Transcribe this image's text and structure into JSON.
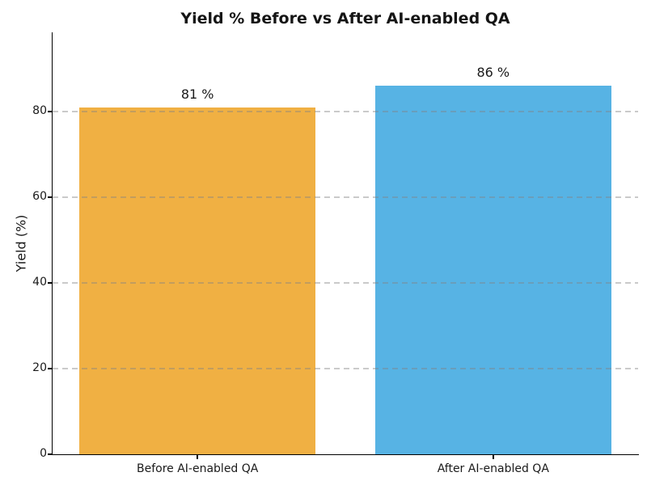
{
  "chart_data": {
    "type": "bar",
    "title": "Yield % Before vs After AI-enabled QA",
    "xlabel": "",
    "ylabel": "Yield (%)",
    "categories": [
      "Before AI-enabled QA",
      "After AI-enabled QA"
    ],
    "values": [
      81,
      86
    ],
    "value_labels": [
      "81 %",
      "86 %"
    ],
    "bar_colors": [
      "#F0B043",
      "#57B3E4"
    ],
    "yticks": [
      0,
      20,
      40,
      60,
      80
    ],
    "ytick_labels": [
      "0",
      "20",
      "40",
      "60",
      "80"
    ],
    "ylim": [
      0,
      98.5
    ],
    "grid": "horizontal dashed, drawn over bars",
    "legend": "none",
    "colors": {
      "title_text": "#151515",
      "axis_text": "#1a1a1a",
      "spine": "#000000",
      "gridline": "#c9c9c9",
      "background": "#ffffff"
    }
  }
}
